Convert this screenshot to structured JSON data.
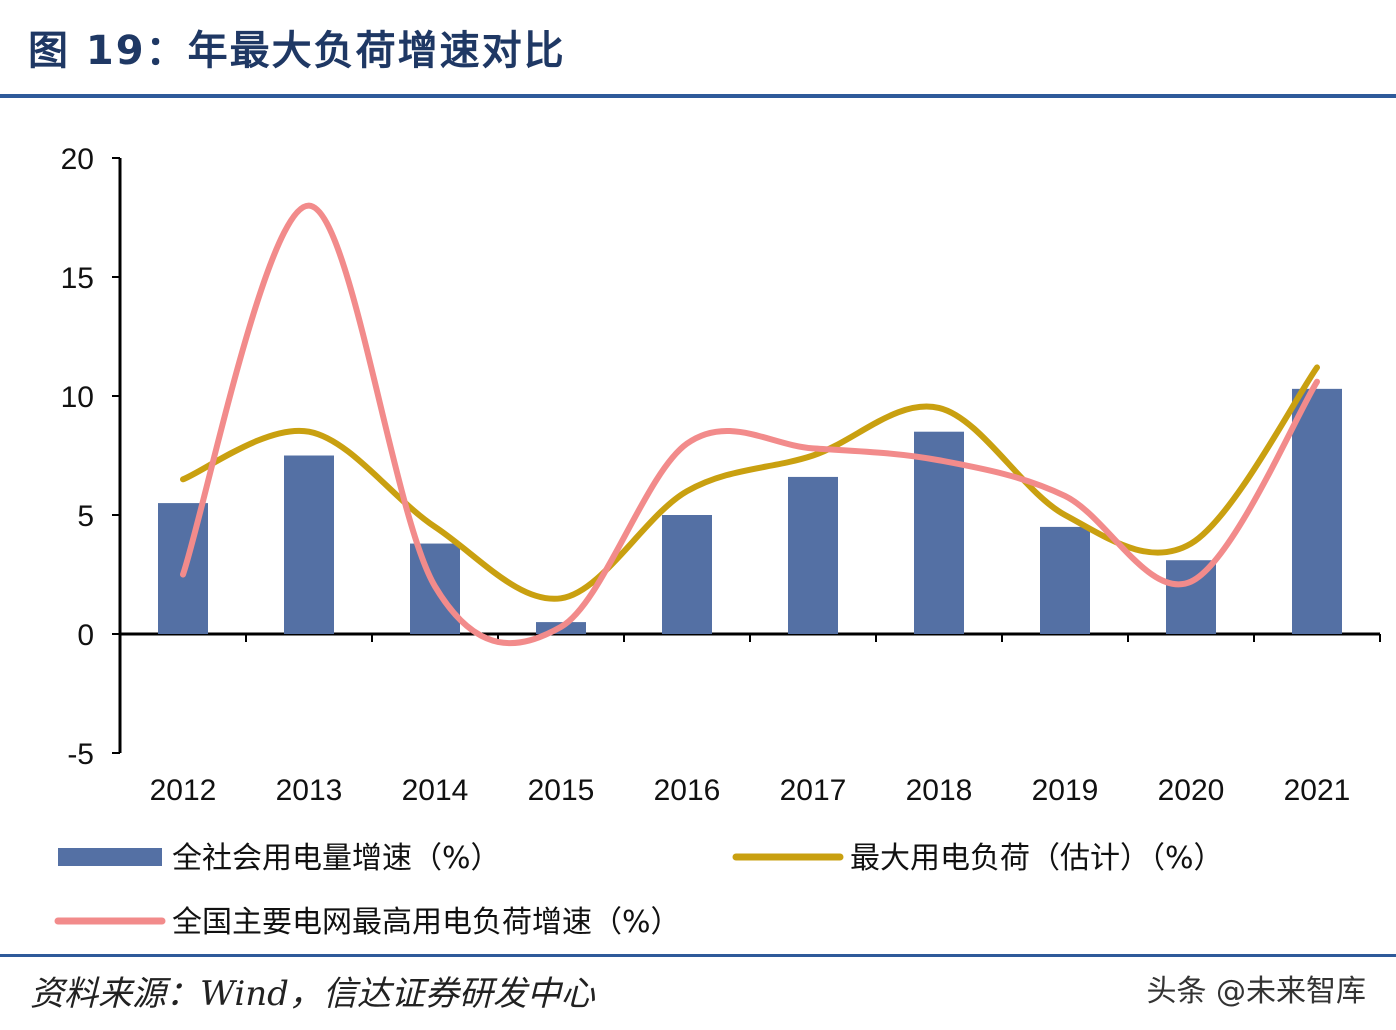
{
  "header": {
    "title": "图 19：年最大负荷增速对比"
  },
  "chart_data": {
    "type": "bar",
    "categories": [
      "2012",
      "2013",
      "2014",
      "2015",
      "2016",
      "2017",
      "2018",
      "2019",
      "2020",
      "2021"
    ],
    "ylim": [
      -5,
      20
    ],
    "yticks": [
      "20",
      "15",
      "10",
      "5",
      "0",
      "-5"
    ],
    "ytick_values": [
      20,
      15,
      10,
      5,
      0,
      -5
    ],
    "grid": false,
    "legend_position": "bottom",
    "series": [
      {
        "name": "全社会用电量增速（%）",
        "kind": "bar",
        "color": "#5470a4",
        "values": [
          5.5,
          7.5,
          3.8,
          0.5,
          5.0,
          6.6,
          8.5,
          4.5,
          3.1,
          10.3
        ]
      },
      {
        "name": "最大用电负荷（估计）（%）",
        "kind": "line",
        "color": "#c9a010",
        "values": [
          6.5,
          8.5,
          4.5,
          1.5,
          6.0,
          7.5,
          9.5,
          5.0,
          3.8,
          11.2
        ]
      },
      {
        "name": "全国主要电网最高用电负荷增速（%）",
        "kind": "line",
        "color": "#f28b8b",
        "values": [
          2.5,
          18.0,
          2.0,
          0.3,
          8.0,
          7.8,
          7.3,
          5.8,
          2.2,
          10.6
        ]
      }
    ]
  },
  "footer": {
    "source": "资料来源：Wind，信达证券研发中心",
    "watermark": "头条 @未来智库"
  }
}
